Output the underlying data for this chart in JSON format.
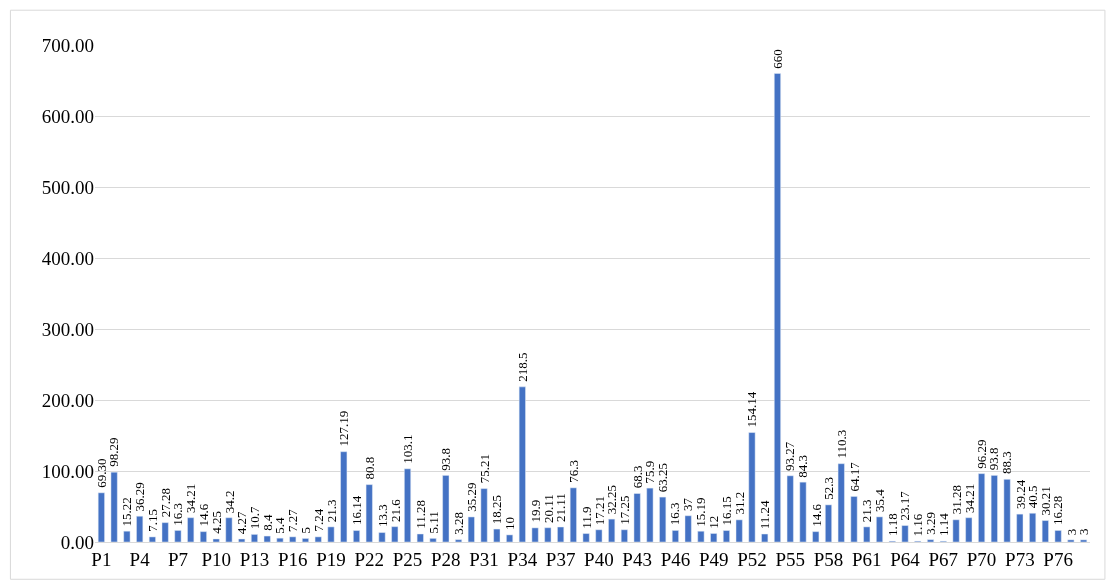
{
  "chart_data": {
    "type": "bar",
    "categories": [
      "P1",
      null,
      null,
      "P4",
      null,
      null,
      "P7",
      null,
      null,
      "P10",
      null,
      null,
      "P13",
      null,
      null,
      "P16",
      null,
      null,
      "P19",
      null,
      null,
      "P22",
      null,
      null,
      "P25",
      null,
      null,
      "P28",
      null,
      null,
      "P31",
      null,
      null,
      "P34",
      null,
      null,
      "P37",
      null,
      null,
      "P40",
      null,
      null,
      "P43",
      null,
      null,
      "P46",
      null,
      null,
      "P49",
      null,
      null,
      "P52",
      null,
      null,
      "P55",
      null,
      null,
      "P58",
      null,
      null,
      "P61",
      null,
      null,
      "P64",
      null,
      null,
      "P67",
      null,
      null,
      "P70",
      null,
      null,
      "P73",
      null,
      null,
      "P76",
      null,
      null
    ],
    "values": [
      69.3,
      98.29,
      15.22,
      36.29,
      7.15,
      27.28,
      16.3,
      34.21,
      14.6,
      4.25,
      34.2,
      4.27,
      10.7,
      8.4,
      5.4,
      7.27,
      5,
      7.24,
      21.3,
      127.19,
      16.14,
      80.8,
      13.3,
      21.6,
      103.1,
      11.28,
      5.11,
      93.8,
      3.28,
      35.29,
      75.21,
      18.25,
      10,
      218.5,
      19.9,
      20.11,
      21.11,
      76.3,
      11.9,
      17.21,
      32.25,
      17.25,
      68.3,
      75.9,
      63.25,
      16.3,
      37,
      15.19,
      12,
      16.15,
      31.2,
      154.14,
      11.24,
      660,
      93.27,
      84.3,
      14.6,
      52.3,
      110.3,
      64.17,
      21.3,
      35.4,
      1.18,
      23.17,
      1.16,
      3.29,
      1.14,
      31.28,
      34.21,
      96.29,
      93.8,
      88.3,
      39.24,
      40.5,
      30.21,
      16.28,
      3,
      3
    ],
    "value_labels": [
      "69.30",
      "98.29",
      "15.22",
      "36.29",
      "7.15",
      "27.28",
      "16.3",
      "34.21",
      "14.6",
      "4.25",
      "34.2",
      "4.27",
      "10.7",
      "8.4",
      "5.4",
      "7.27",
      "5",
      "7.24",
      "21.3",
      "127.19",
      "16.14",
      "80.8",
      "13.3",
      "21.6",
      "103.1",
      "11.28",
      "5.11",
      "93.8",
      "3.28",
      "35.29",
      "75.21",
      "18.25",
      "10",
      "218.5",
      "19.9",
      "20.11",
      "21.11",
      "76.3",
      "11.9",
      "17.21",
      "32.25",
      "17.25",
      "68.3",
      "75.9",
      "63.25",
      "16.3",
      "37",
      "15.19",
      "12",
      "16.15",
      "31.2",
      "154.14",
      "11.24",
      "660",
      "93.27",
      "84.3",
      "14.6",
      "52.3",
      "110.3",
      "64.17",
      "21.3",
      "35.4",
      "1.18",
      "23.17",
      "1.16",
      "3.29",
      "1.14",
      "31.28",
      "34.21",
      "96.29",
      "93.8",
      "88.3",
      "39.24",
      "40.5",
      "30.21",
      "16.28",
      "3",
      "3"
    ],
    "color": "#4472c4",
    "ylim": [
      0,
      700
    ],
    "yticks": [
      {
        "value": 0,
        "label": "0.00"
      },
      {
        "value": 100,
        "label": "100.00"
      },
      {
        "value": 200,
        "label": "200.00"
      },
      {
        "value": 300,
        "label": "300.00"
      },
      {
        "value": 400,
        "label": "400.00"
      },
      {
        "value": 500,
        "label": "500.00"
      },
      {
        "value": 600,
        "label": "600.00"
      },
      {
        "value": 700,
        "label": "700.00"
      }
    ],
    "grid": "y"
  }
}
